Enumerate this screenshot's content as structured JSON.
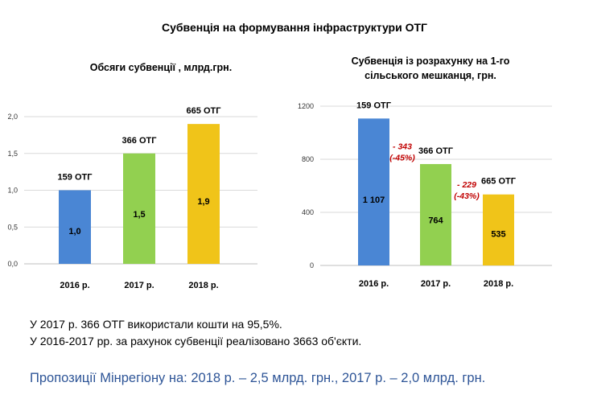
{
  "slide": {
    "title": "Субвенція на формування інфраструктури ОТГ",
    "notes": [
      "У 2017 р. 366 ОТГ використали кошти на 95,5%.",
      "У 2016-2017 рр. за рахунок субвенції реалізовано 3663 об'єкти."
    ],
    "proposal": "Пропозиції Мінрегіону на: 2018 р. – 2,5 млрд. грн., 2017 р. – 2,0 млрд. грн."
  },
  "chart_data": [
    {
      "type": "bar",
      "title": "Обсяги субвенції , млрд.грн.",
      "categories": [
        "2016 р.",
        "2017 р.",
        "2018 р."
      ],
      "values": [
        1.0,
        1.5,
        1.9
      ],
      "value_labels": [
        "1,0",
        "1,5",
        "1,9"
      ],
      "top_labels": [
        "159 ОТГ",
        "366 ОТГ",
        "665 ОТГ"
      ],
      "ylim": [
        0,
        2.0
      ],
      "y_ticks": [
        0,
        0.5,
        1.0,
        1.5,
        2.0
      ],
      "y_tick_labels": [
        "0,0",
        "0,5",
        "1,0",
        "1,5",
        "2,0"
      ],
      "grid": true,
      "colors": [
        "#4a86d4",
        "#92d050",
        "#f0c419"
      ]
    },
    {
      "type": "bar",
      "title": "Субвенція із розрахунку на 1-го сільського мешканця, грн.",
      "categories": [
        "2016 р.",
        "2017 р.",
        "2018 р."
      ],
      "values": [
        1107,
        764,
        535
      ],
      "value_labels": [
        "1 107",
        "764",
        "535"
      ],
      "top_labels": [
        "159 ОТГ",
        "366 ОТГ",
        "665 ОТГ"
      ],
      "ylim": [
        0,
        1200
      ],
      "y_ticks": [
        0,
        400,
        800,
        1200
      ],
      "y_tick_labels": [
        "0",
        "400",
        "800",
        "1200"
      ],
      "grid": true,
      "annotations": [
        {
          "line1": "- 343",
          "line2": "(-45%)"
        },
        {
          "line1": "- 229",
          "line2": "(-43%)"
        }
      ],
      "colors": [
        "#4a86d4",
        "#92d050",
        "#f0c419"
      ]
    }
  ]
}
